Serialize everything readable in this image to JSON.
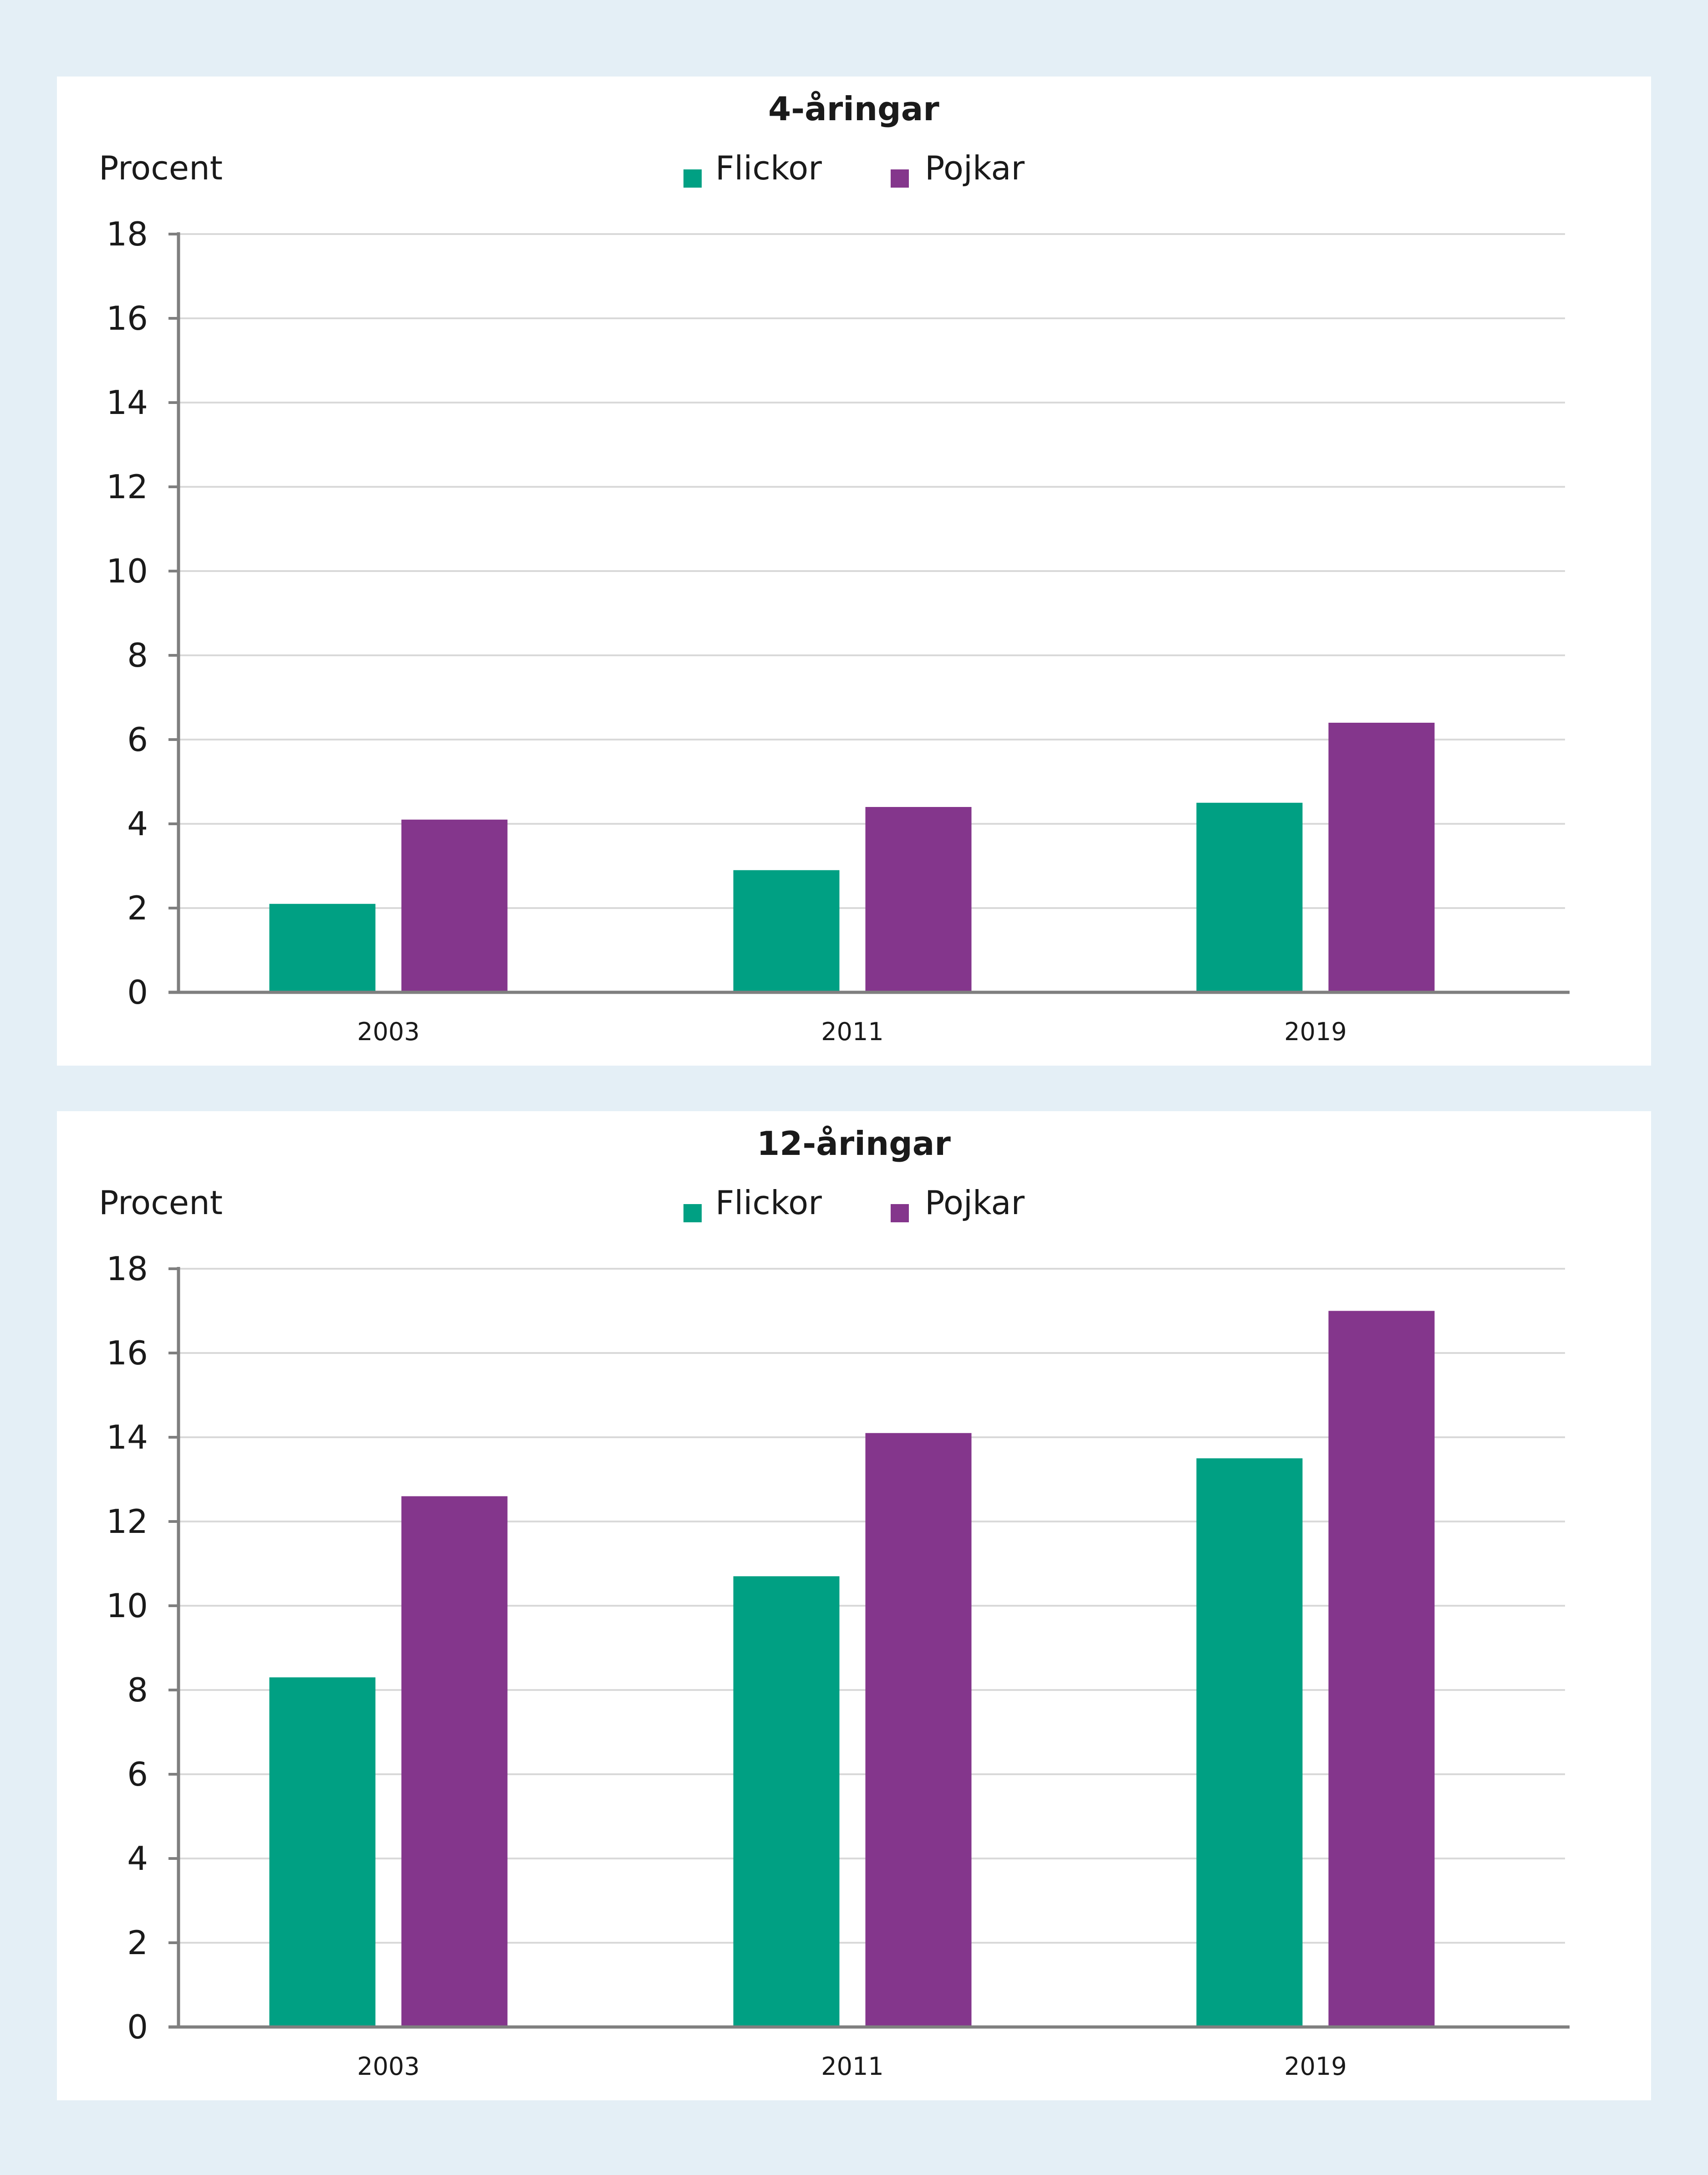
{
  "colors": {
    "flickor": "#00a083",
    "pojkar": "#84368c",
    "background": "#e4eff6",
    "panel": "#ffffff"
  },
  "chart_data": [
    {
      "type": "bar",
      "title": "4-åringar",
      "ylabel": "Procent",
      "xlabel": "",
      "categories": [
        "2003",
        "2011",
        "2019"
      ],
      "series": [
        {
          "name": "Flickor",
          "values": [
            2.1,
            2.9,
            4.5
          ]
        },
        {
          "name": "Pojkar",
          "values": [
            4.1,
            4.4,
            6.4
          ]
        }
      ],
      "ylim": [
        0,
        18
      ],
      "yticks": [
        0,
        2,
        4,
        6,
        8,
        10,
        12,
        14,
        16,
        18
      ],
      "grid": true,
      "legend": "top-center"
    },
    {
      "type": "bar",
      "title": "12-åringar",
      "ylabel": "Procent",
      "xlabel": "",
      "categories": [
        "2003",
        "2011",
        "2019"
      ],
      "series": [
        {
          "name": "Flickor",
          "values": [
            8.3,
            10.7,
            13.5
          ]
        },
        {
          "name": "Pojkar",
          "values": [
            12.6,
            14.1,
            17.0
          ]
        }
      ],
      "ylim": [
        0,
        18
      ],
      "yticks": [
        0,
        2,
        4,
        6,
        8,
        10,
        12,
        14,
        16,
        18
      ],
      "grid": true,
      "legend": "top-center"
    }
  ]
}
